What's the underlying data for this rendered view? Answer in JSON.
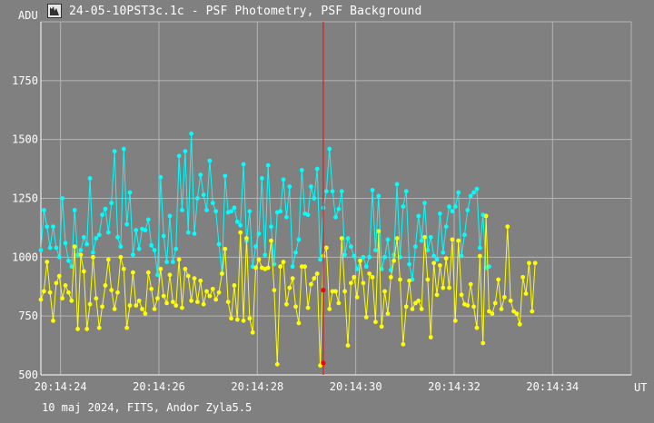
{
  "window": {
    "title": "24-05-10PST3c.1c - PSF Photometry, PSF Background",
    "footer": "10 maj 2024, FITS, Andor Zyla5.5"
  },
  "colors": {
    "background": "#808080",
    "grid": "#b4b4b4",
    "series_1": "#00ffff",
    "series_2": "#ffff00",
    "cursor": "#ff0000"
  },
  "chart_data": {
    "type": "line",
    "ylabel": "ADU",
    "xunit": "UT",
    "xlim": [
      "20:14:23.6",
      "20:14:35.6"
    ],
    "ylim": [
      500,
      2000
    ],
    "yticks": [
      500,
      750,
      1000,
      1250,
      1500,
      1750
    ],
    "xticks": [
      "20:14:24",
      "20:14:26",
      "20:14:28",
      "20:14:30",
      "20:14:32",
      "20:14:34"
    ],
    "grid": true,
    "cursor_x": "20:14:29.34",
    "cursor_marks": [
      860,
      550
    ],
    "x_start": "20:14:23.60",
    "x_step_s": 0.0624,
    "series": [
      {
        "values": [
          1030,
          1200,
          1130,
          1040,
          1130,
          1040,
          1000,
          1250,
          1060,
          985,
          960,
          1200,
          1010,
          1030,
          1085,
          1055,
          1335,
          1020,
          1080,
          1095,
          1180,
          1205,
          1105,
          1230,
          1450,
          1085,
          1045,
          1460,
          1140,
          1275,
          1010,
          1115,
          1035,
          1120,
          1115,
          1160,
          1050,
          1030,
          925,
          1340,
          1090,
          980,
          1175,
          980,
          1035,
          1430,
          1200,
          1450,
          1105,
          1525,
          1100,
          1250,
          1350,
          1265,
          1200,
          1410,
          1230,
          1195,
          1055,
          930,
          1345,
          1190,
          1195,
          1210,
          1150,
          1135,
          1395,
          1070,
          1195,
          960,
          1045,
          1100,
          1335,
          1010,
          1390,
          1130,
          970,
          1190,
          1195,
          1330,
          1170,
          1300,
          960,
          1020,
          1075,
          1370,
          1185,
          1180,
          1300,
          1250,
          1375,
          990,
          1210,
          1280,
          1460,
          1280,
          1170,
          1205,
          1280,
          1010,
          1080,
          1045,
          1005,
          950,
          985,
          1000,
          960,
          1000,
          1285,
          1030,
          1260,
          950,
          1000,
          1075,
          945,
          1010,
          1310,
          1000,
          1215,
          1280,
          970,
          905,
          1045,
          1175,
          1070,
          1230,
          1030,
          1085,
          1005,
          990,
          1185,
          1020,
          1130,
          1215,
          1195,
          1215,
          1275,
          1005,
          1095,
          1200,
          1260,
          1275,
          1290,
          1040,
          1180,
          955,
          960
        ]
      },
      {
        "values": [
          820,
          855,
          980,
          850,
          730,
          890,
          920,
          825,
          880,
          850,
          815,
          1045,
          695,
          1010,
          940,
          695,
          800,
          1000,
          825,
          700,
          790,
          880,
          990,
          860,
          780,
          850,
          1000,
          950,
          700,
          795,
          935,
          795,
          815,
          780,
          760,
          935,
          865,
          780,
          825,
          950,
          835,
          805,
          925,
          810,
          795,
          990,
          785,
          950,
          920,
          815,
          910,
          810,
          900,
          800,
          855,
          835,
          865,
          820,
          850,
          930,
          1035,
          810,
          740,
          880,
          735,
          1105,
          730,
          1080,
          740,
          680,
          955,
          990,
          955,
          950,
          955,
          1070,
          860,
          545,
          960,
          980,
          800,
          870,
          910,
          790,
          720,
          960,
          960,
          785,
          885,
          910,
          930,
          540,
          1005,
          1040,
          780,
          855,
          855,
          805,
          1080,
          855,
          625,
          890,
          915,
          830,
          985,
          890,
          745,
          930,
          915,
          725,
          1110,
          705,
          855,
          760,
          915,
          985,
          1080,
          905,
          630,
          790,
          900,
          780,
          805,
          815,
          780,
          1085,
          905,
          660,
          975,
          840,
          965,
          870,
          995,
          870,
          1075,
          730,
          1070,
          840,
          800,
          795,
          885,
          790,
          700,
          1005,
          635,
          1175,
          770,
          760,
          805,
          905,
          780,
          830,
          1130,
          815,
          770,
          760,
          715,
          915,
          845,
          975,
          770,
          975
        ]
      }
    ]
  }
}
